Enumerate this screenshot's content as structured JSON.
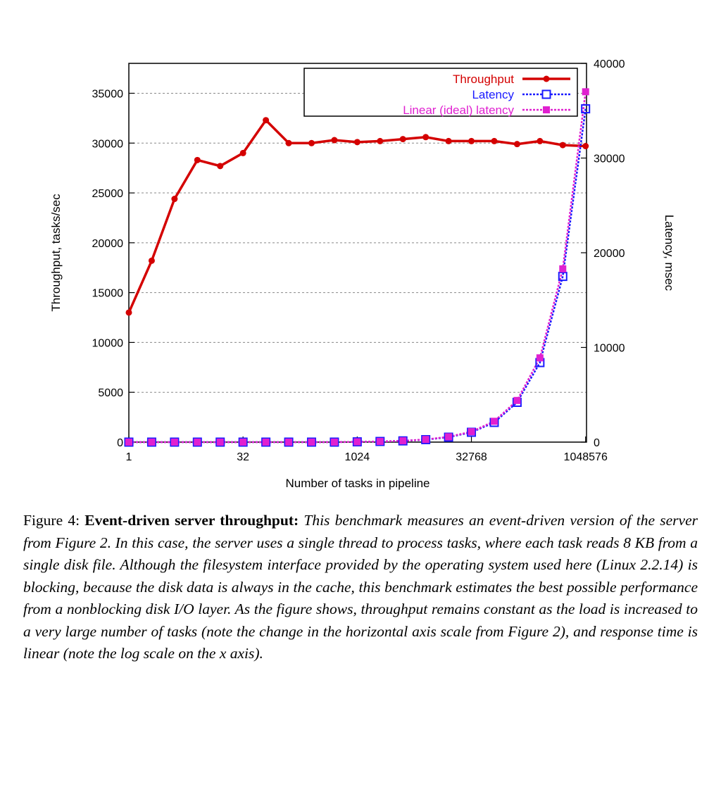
{
  "chart_data": {
    "type": "line",
    "x_scale": "log2",
    "xlabel": "Number of tasks in pipeline",
    "ylabel_left": "Throughput, tasks/sec",
    "ylabel_right": "Latency, msec",
    "x_ticks": [
      "1",
      "32",
      "1024",
      "32768",
      "1048576"
    ],
    "x_tick_values": [
      1,
      32,
      1024,
      32768,
      1048576
    ],
    "y_left_ticks": [
      0,
      5000,
      10000,
      15000,
      20000,
      25000,
      30000,
      35000
    ],
    "y_right_ticks": [
      0,
      10000,
      20000,
      30000,
      40000
    ],
    "y_left_range": [
      0,
      35000
    ],
    "y_right_range": [
      0,
      40000
    ],
    "grid": "horizontal dashed",
    "legend_position": "top-right",
    "x": [
      1,
      2,
      4,
      8,
      16,
      32,
      64,
      128,
      256,
      512,
      1024,
      2048,
      4096,
      8192,
      16384,
      32768,
      65536,
      131072,
      262144,
      524288,
      1048576
    ],
    "series": [
      {
        "name": "Throughput",
        "axis": "left",
        "color": "#d40000",
        "marker": "filled-circle",
        "values": [
          13000,
          18200,
          24400,
          28300,
          27700,
          29000,
          32300,
          30000,
          30000,
          30300,
          30100,
          30200,
          30400,
          30600,
          30200,
          30200,
          30200,
          29900,
          30200,
          29800,
          29700
        ]
      },
      {
        "name": "Latency",
        "axis": "right",
        "color": "#1a1aff",
        "marker": "open-square",
        "values": [
          0,
          0,
          0,
          0,
          0,
          0,
          0,
          0,
          0,
          0,
          30,
          70,
          130,
          260,
          520,
          1040,
          2080,
          4200,
          8400,
          17500,
          35200
        ]
      },
      {
        "name": "Linear (ideal) latency",
        "axis": "right",
        "color": "#e020d0",
        "marker": "filled-square",
        "values": [
          0,
          0,
          0,
          0,
          0,
          0,
          0,
          0,
          0,
          0,
          30,
          70,
          140,
          280,
          560,
          1100,
          2200,
          4400,
          8900,
          18300,
          37000
        ]
      }
    ]
  },
  "caption": {
    "label": "Figure 4: ",
    "heading": "Event-driven server throughput: ",
    "text": "This benchmark measures an event-driven version of the server from Figure 2. In this case, the server uses a single thread to process tasks, where each task reads 8 KB from a single disk file. Although the filesystem interface provided by the operating system used here (Linux 2.2.14) is blocking, because the disk data is always in the cache, this benchmark estimates the best possible performance from a nonblocking disk I/O layer. As the figure shows, throughput remains constant as the load is increased to a very large number of tasks (note the change in the horizontal axis scale from Figure 2), and response time is linear (note the log scale on the x axis)."
  }
}
